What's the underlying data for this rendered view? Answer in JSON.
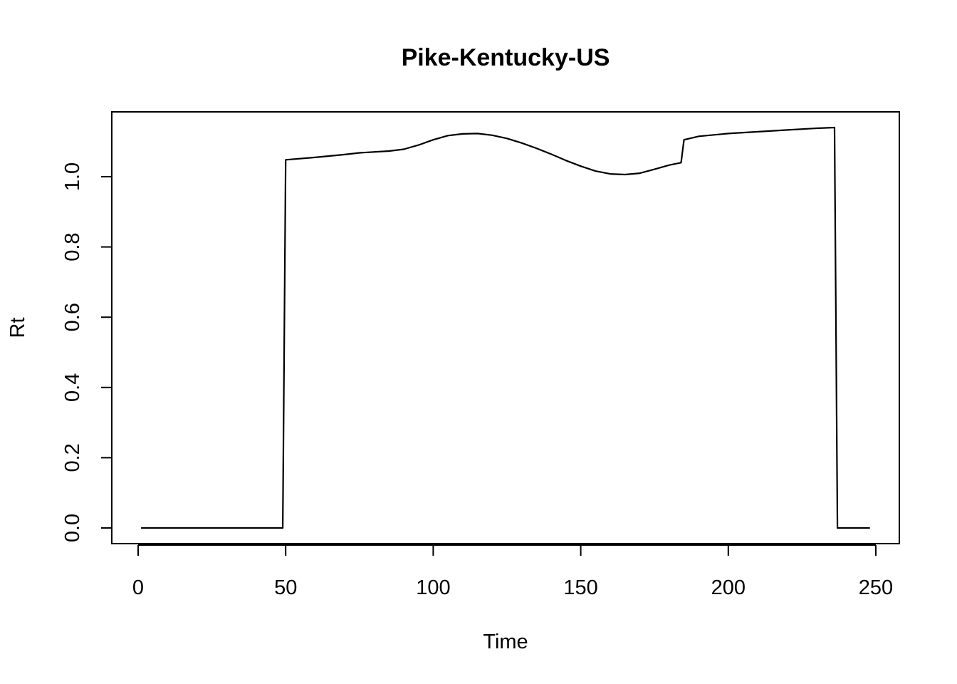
{
  "chart_data": {
    "type": "line",
    "title": "Pike-Kentucky-US",
    "xlabel": "Time",
    "ylabel": "Rt",
    "xlim": [
      0,
      250
    ],
    "ylim": [
      0,
      1.15
    ],
    "x_ticks": [
      0,
      50,
      100,
      150,
      200,
      250
    ],
    "y_ticks": [
      0.0,
      0.2,
      0.4,
      0.6,
      0.8,
      1.0
    ],
    "x_tick_labels": [
      "0",
      "50",
      "100",
      "150",
      "200",
      "250"
    ],
    "y_tick_labels": [
      "0.0",
      "0.2",
      "0.4",
      "0.6",
      "0.8",
      "1.0"
    ],
    "grid": false,
    "series": [
      {
        "color": "#000000",
        "x": [
          1,
          49,
          50,
          60,
          70,
          75,
          85,
          90,
          95,
          100,
          105,
          110,
          115,
          120,
          125,
          130,
          135,
          140,
          145,
          150,
          155,
          160,
          165,
          170,
          175,
          180,
          184,
          185,
          190,
          200,
          210,
          220,
          230,
          236,
          237,
          248
        ],
        "y": [
          0.0,
          0.0,
          1.048,
          1.055,
          1.063,
          1.068,
          1.073,
          1.078,
          1.09,
          1.105,
          1.117,
          1.122,
          1.123,
          1.118,
          1.109,
          1.096,
          1.081,
          1.064,
          1.046,
          1.03,
          1.016,
          1.008,
          1.006,
          1.01,
          1.021,
          1.033,
          1.04,
          1.105,
          1.115,
          1.123,
          1.128,
          1.133,
          1.138,
          1.14,
          0.0,
          0.0
        ]
      }
    ]
  }
}
